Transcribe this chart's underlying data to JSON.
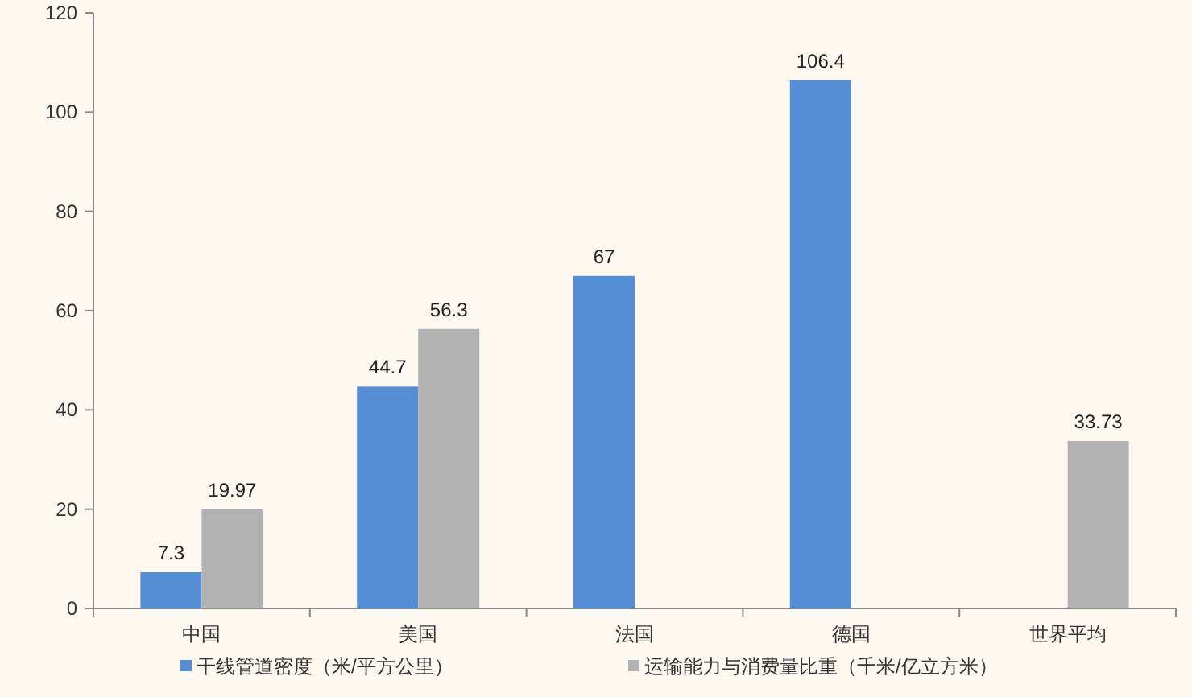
{
  "chart_data": {
    "type": "bar",
    "categories": [
      "中国",
      "美国",
      "法国",
      "德国",
      "世界平均"
    ],
    "series": [
      {
        "name": "干线管道密度（米/平方公里）",
        "color": "#558ed5",
        "values": [
          7.3,
          44.7,
          67,
          106.4,
          null
        ]
      },
      {
        "name": "运输能力与消费量比重（千米/亿立方米）",
        "color": "#b2b2b2",
        "values": [
          19.97,
          56.3,
          null,
          null,
          33.73
        ]
      }
    ],
    "ylim": [
      0,
      120
    ],
    "yticks": [
      0,
      20,
      40,
      60,
      80,
      100,
      120
    ],
    "data_labels": true,
    "legend": "bottom",
    "grid": false
  }
}
